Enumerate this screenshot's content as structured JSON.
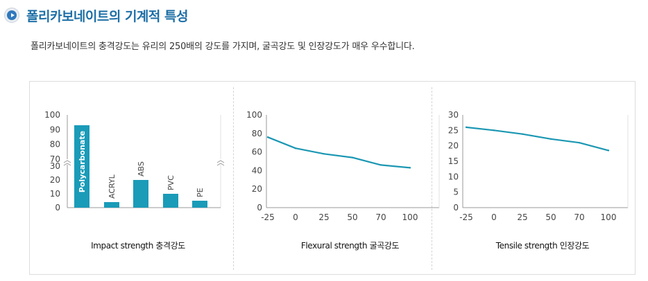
{
  "page": {
    "title": "폴리카보네이트의 기계적 특성",
    "description": "폴리카보네이트의 충격강도는 유리의 250배의 강도를 가지며, 굴곡강도 및 인장강도가 매우 우수합니다."
  },
  "icons": {
    "title_bullet": "play-circle-icon"
  },
  "colors": {
    "title": "#1d6fa6",
    "bar": "#1a9bb8",
    "line": "#1b97b3",
    "axis": "#999999",
    "grid": "#e2e2e2"
  },
  "chart_data": [
    {
      "type": "bar",
      "caption": "Impact strength  충격강도",
      "categories": [
        "Polycarbonate",
        "ACRYL",
        "ABS",
        "PVC",
        "PE"
      ],
      "values": [
        93,
        4,
        20,
        10,
        5
      ],
      "yticks": [
        0,
        10,
        20,
        30,
        70,
        80,
        90,
        100
      ],
      "axis_break": [
        30,
        70
      ],
      "ylim": [
        0,
        100
      ]
    },
    {
      "type": "line",
      "caption": "Flexural strength 굴곡강도",
      "x": [
        -25,
        0,
        25,
        50,
        70,
        100
      ],
      "y": [
        76,
        64,
        58,
        54,
        46,
        43
      ],
      "xticks": [
        -25,
        0,
        25,
        50,
        70,
        100
      ],
      "yticks": [
        0,
        20,
        40,
        60,
        80,
        100
      ],
      "ylim": [
        0,
        100
      ]
    },
    {
      "type": "line",
      "caption": "Tensile strength 인장강도",
      "x": [
        -25,
        0,
        25,
        50,
        70,
        100
      ],
      "y": [
        26,
        25,
        23.8,
        22.2,
        21,
        18.5
      ],
      "xticks": [
        -25,
        0,
        25,
        50,
        70,
        100
      ],
      "yticks": [
        0,
        5,
        10,
        15,
        20,
        25,
        30
      ],
      "ylim": [
        0,
        30
      ]
    }
  ]
}
